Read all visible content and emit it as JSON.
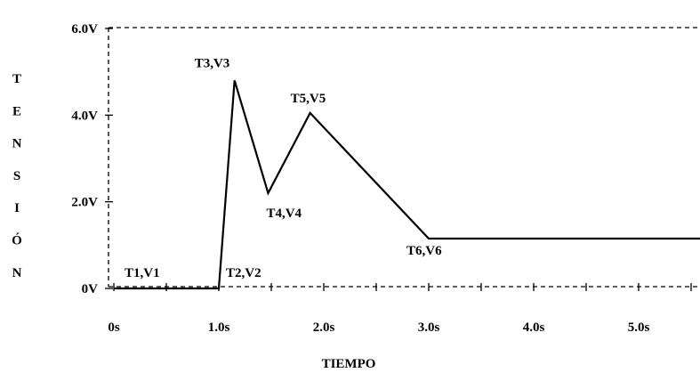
{
  "chart_data": {
    "type": "line",
    "title": "",
    "xlabel": "TIEMPO",
    "ylabel": "TENSIÓN",
    "xlim": [
      0,
      5.7
    ],
    "ylim": [
      0,
      6.0
    ],
    "x_ticks": [
      0,
      0.5,
      1.0,
      1.5,
      2.0,
      2.5,
      3.0,
      3.5,
      4.0,
      4.5,
      5.0,
      5.5
    ],
    "x_tick_labels": [
      {
        "value": 0,
        "label": "0s"
      },
      {
        "value": 1.0,
        "label": "1.0s"
      },
      {
        "value": 2.0,
        "label": "2.0s"
      },
      {
        "value": 3.0,
        "label": "3.0s"
      },
      {
        "value": 4.0,
        "label": "4.0s"
      },
      {
        "value": 5.0,
        "label": "5.0s"
      }
    ],
    "y_tick_labels": [
      {
        "value": 0,
        "label": "0V"
      },
      {
        "value": 2.0,
        "label": "2.0V"
      },
      {
        "value": 4.0,
        "label": "4.0V"
      },
      {
        "value": 6.0,
        "label": "6.0V"
      }
    ],
    "series": [
      {
        "x": [
          0,
          1.0,
          1.15,
          1.47,
          1.87,
          3.0,
          5.7
        ],
        "y": [
          0,
          0,
          4.8,
          2.2,
          4.05,
          1.15,
          1.15
        ],
        "color": "#000000"
      }
    ],
    "annotations": [
      {
        "text": "T1,V1",
        "x": 0.5,
        "y": 0.0
      },
      {
        "text": "T2,V2",
        "x": 1.0,
        "y": 0.0
      },
      {
        "text": "T3,V3",
        "x": 1.15,
        "y": 4.8
      },
      {
        "text": "T4,V4",
        "x": 1.47,
        "y": 2.2
      },
      {
        "text": "T5,V5",
        "x": 1.87,
        "y": 4.05
      },
      {
        "text": "T6,V6",
        "x": 3.0,
        "y": 1.15
      }
    ],
    "frame": {
      "style": "dashed",
      "color": "#000000"
    },
    "grid": false,
    "legend": "none"
  }
}
